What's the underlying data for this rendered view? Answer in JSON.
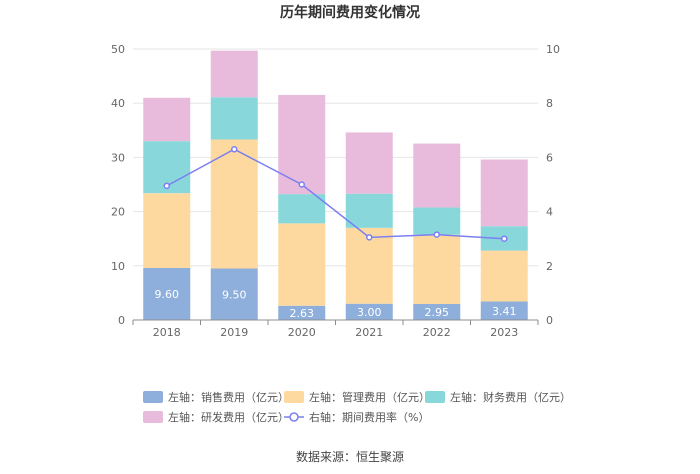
{
  "chart_data": {
    "type": "bar",
    "stacked": true,
    "title": "历年期间费用变化情况",
    "categories": [
      "2018",
      "2019",
      "2020",
      "2021",
      "2022",
      "2023"
    ],
    "left_axis": {
      "min": 0,
      "max": 50,
      "ticks": [
        "0",
        "10",
        "20",
        "30",
        "40",
        "50"
      ]
    },
    "right_axis": {
      "min": 0,
      "max": 10,
      "ticks": [
        "0",
        "2",
        "4",
        "6",
        "8",
        "10"
      ]
    },
    "series": [
      {
        "name": "左轴：销售费用（亿元）",
        "axis": "left",
        "color": "#8eaedb",
        "values": [
          9.6,
          9.5,
          2.63,
          3.0,
          2.95,
          3.41
        ],
        "labels": [
          "9.60",
          "9.50",
          "2.63",
          "3.00",
          "2.95",
          "3.41"
        ]
      },
      {
        "name": "左轴：管理费用（亿元）",
        "axis": "left",
        "color": "#fdd9a0",
        "values": [
          13.8,
          23.8,
          15.2,
          14.0,
          12.8,
          9.4
        ]
      },
      {
        "name": "左轴：财务费用（亿元）",
        "axis": "left",
        "color": "#88d8db",
        "values": [
          9.6,
          7.8,
          5.4,
          6.3,
          5.0,
          4.5
        ]
      },
      {
        "name": "左轴：研发费用（亿元）",
        "axis": "left",
        "color": "#e8bbdc",
        "values": [
          8.0,
          8.6,
          18.3,
          11.3,
          11.8,
          12.3
        ]
      },
      {
        "name": "右轴：期间费用率（%）",
        "axis": "right",
        "type": "line",
        "color": "#7b7ff0",
        "values": [
          4.95,
          6.3,
          5.0,
          3.05,
          3.15,
          3.0
        ]
      }
    ],
    "source": "数据来源：恒生聚源"
  }
}
